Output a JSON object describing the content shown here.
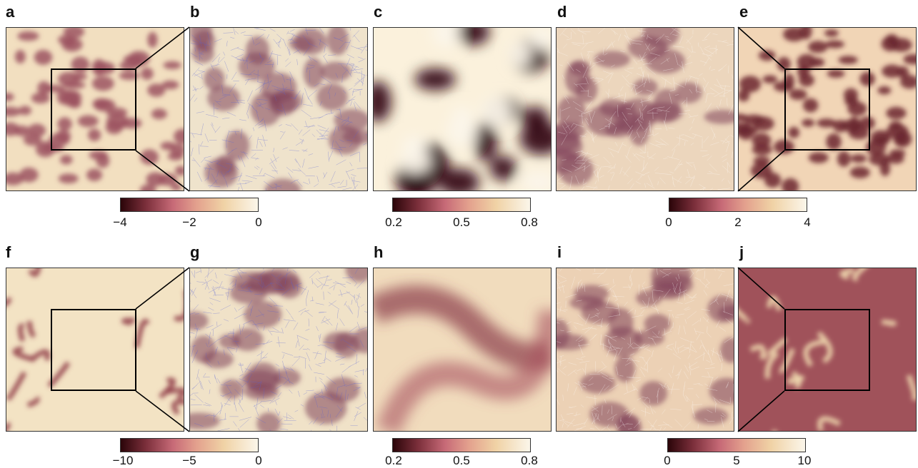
{
  "figure": {
    "panel_labels": [
      "a",
      "b",
      "c",
      "d",
      "e",
      "f",
      "g",
      "h",
      "i",
      "j"
    ],
    "colorbars": [
      {
        "ticks": [
          "−4",
          "−2",
          "0"
        ]
      },
      {
        "ticks": [
          "0.2",
          "0.5",
          "0.8"
        ]
      },
      {
        "ticks": [
          "0",
          "2",
          "4"
        ]
      },
      {
        "ticks": [
          "−10",
          "−5",
          "0"
        ]
      },
      {
        "ticks": [
          "0.2",
          "0.5",
          "0.8"
        ]
      },
      {
        "ticks": [
          "0",
          "5",
          "10"
        ]
      }
    ],
    "colors": {
      "dark": "#2b0509",
      "mid": "#c76a77",
      "light": "#fbf6ea",
      "vein": "#5560d8"
    }
  }
}
